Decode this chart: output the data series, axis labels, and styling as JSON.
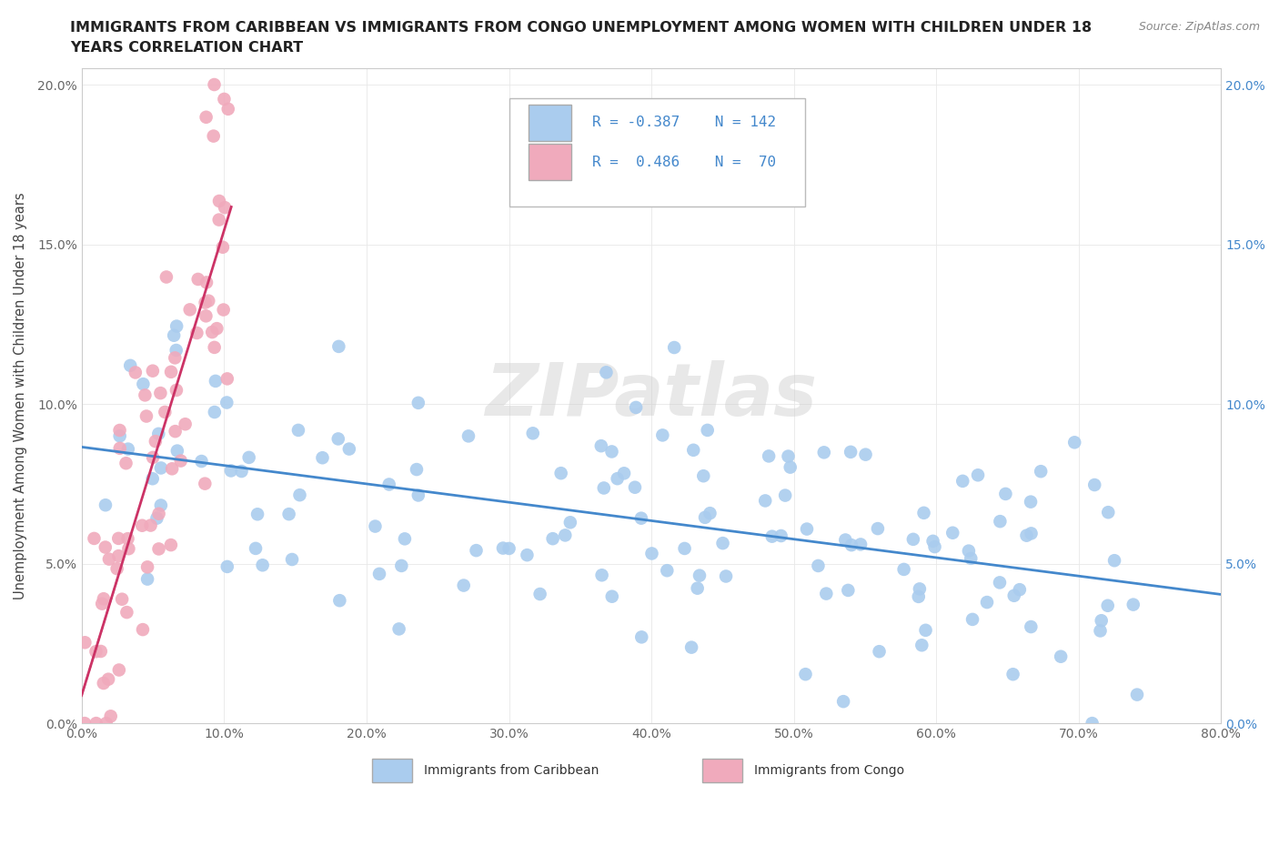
{
  "title_line1": "IMMIGRANTS FROM CARIBBEAN VS IMMIGRANTS FROM CONGO UNEMPLOYMENT AMONG WOMEN WITH CHILDREN UNDER 18",
  "title_line2": "YEARS CORRELATION CHART",
  "source": "Source: ZipAtlas.com",
  "ylabel": "Unemployment Among Women with Children Under 18 years",
  "xlim": [
    0,
    80
  ],
  "ylim": [
    0,
    20.5
  ],
  "xticks": [
    0,
    10,
    20,
    30,
    40,
    50,
    60,
    70,
    80
  ],
  "xticklabels": [
    "0.0%",
    "10.0%",
    "20.0%",
    "30.0%",
    "40.0%",
    "50.0%",
    "60.0%",
    "70.0%",
    "80.0%"
  ],
  "yticks": [
    0,
    5,
    10,
    15,
    20
  ],
  "yticklabels": [
    "0.0%",
    "5.0%",
    "10.0%",
    "15.0%",
    "20.0%"
  ],
  "caribbean_color": "#aaccee",
  "congo_color": "#f0aabc",
  "trend_caribbean_color": "#4488cc",
  "trend_congo_color": "#cc3366",
  "legend_caribbean_label": "Immigrants from Caribbean",
  "legend_congo_label": "Immigrants from Congo",
  "R_caribbean": -0.387,
  "N_caribbean": 142,
  "R_congo": 0.486,
  "N_congo": 70,
  "watermark": "ZIPatlas",
  "caribbean_seed": 17,
  "congo_seed": 23,
  "grid_color": "#e8e8e8",
  "spine_color": "#cccccc",
  "tick_color": "#666666",
  "right_tick_color": "#4488cc"
}
